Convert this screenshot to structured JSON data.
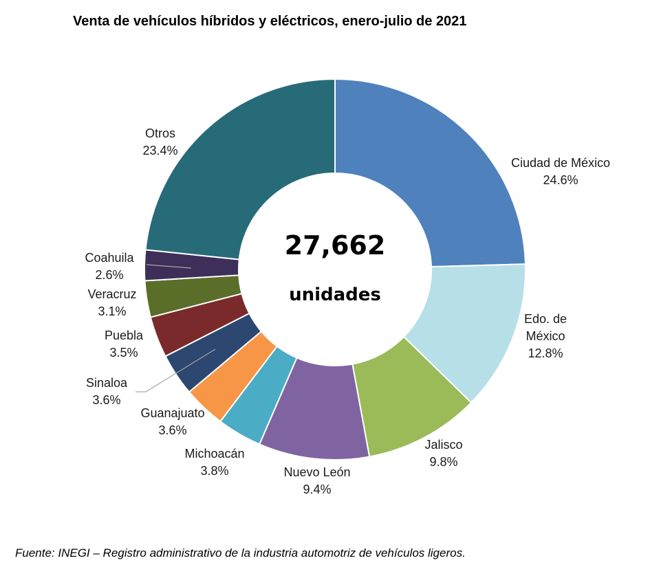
{
  "chart_data": {
    "type": "pie",
    "variant": "donut",
    "title": "Venta de vehículos híbridos y eléctricos, enero-julio de 2021",
    "center_total": "27,662",
    "center_unit": "unidades",
    "source": "Fuente: INEGI – Registro administrativo de la industria automotriz de vehículos ligeros.",
    "slices": [
      {
        "label_lines": [
          "Ciudad de México"
        ],
        "percent_label": "24.6%",
        "value": 24.6,
        "color": "#4f81bd"
      },
      {
        "label_lines": [
          "Edo. de",
          "México"
        ],
        "percent_label": "12.8%",
        "value": 12.8,
        "color": "#b7dfe8"
      },
      {
        "label_lines": [
          "Jalisco"
        ],
        "percent_label": "9.8%",
        "value": 9.8,
        "color": "#9bbb59"
      },
      {
        "label_lines": [
          "Nuevo León"
        ],
        "percent_label": "9.4%",
        "value": 9.4,
        "color": "#8064a2"
      },
      {
        "label_lines": [
          "Michoacán"
        ],
        "percent_label": "3.8%",
        "value": 3.8,
        "color": "#4bacc6"
      },
      {
        "label_lines": [
          "Guanajuato"
        ],
        "percent_label": "3.6%",
        "value": 3.6,
        "color": "#f79646"
      },
      {
        "label_lines": [
          "Sinaloa"
        ],
        "percent_label": "3.6%",
        "value": 3.6,
        "color": "#2c4770"
      },
      {
        "label_lines": [
          "Puebla"
        ],
        "percent_label": "3.5%",
        "value": 3.5,
        "color": "#7a2a2a"
      },
      {
        "label_lines": [
          "Veracruz"
        ],
        "percent_label": "3.1%",
        "value": 3.1,
        "color": "#5a6e2a"
      },
      {
        "label_lines": [
          "Coahuila"
        ],
        "percent_label": "2.6%",
        "value": 2.6,
        "color": "#3d2f5a"
      },
      {
        "label_lines": [
          "Otros"
        ],
        "percent_label": "23.4%",
        "value": 23.4,
        "color": "#276b78"
      }
    ]
  }
}
